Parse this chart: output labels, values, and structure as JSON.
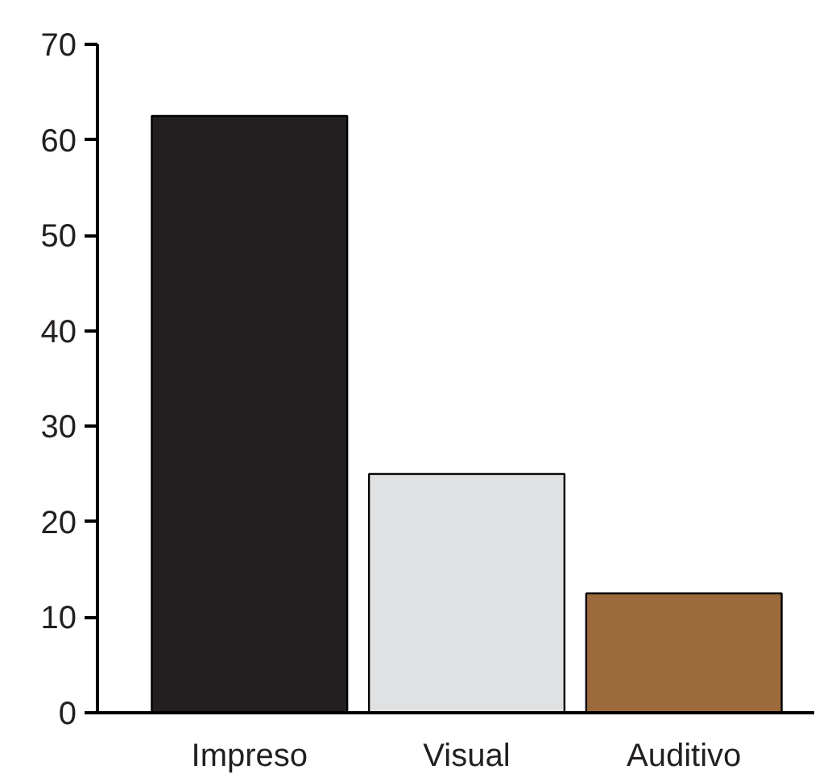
{
  "chart_data": {
    "type": "bar",
    "categories": [
      "Impreso",
      "Visual",
      "Auditivo"
    ],
    "values": [
      62.5,
      25,
      12.5
    ],
    "colors": [
      "#231f20",
      "#e0e1e3",
      "#9c6a3c"
    ],
    "ylim": [
      0,
      70
    ],
    "yticks": [
      0,
      10,
      20,
      30,
      40,
      50,
      60,
      70
    ],
    "grid": false
  }
}
